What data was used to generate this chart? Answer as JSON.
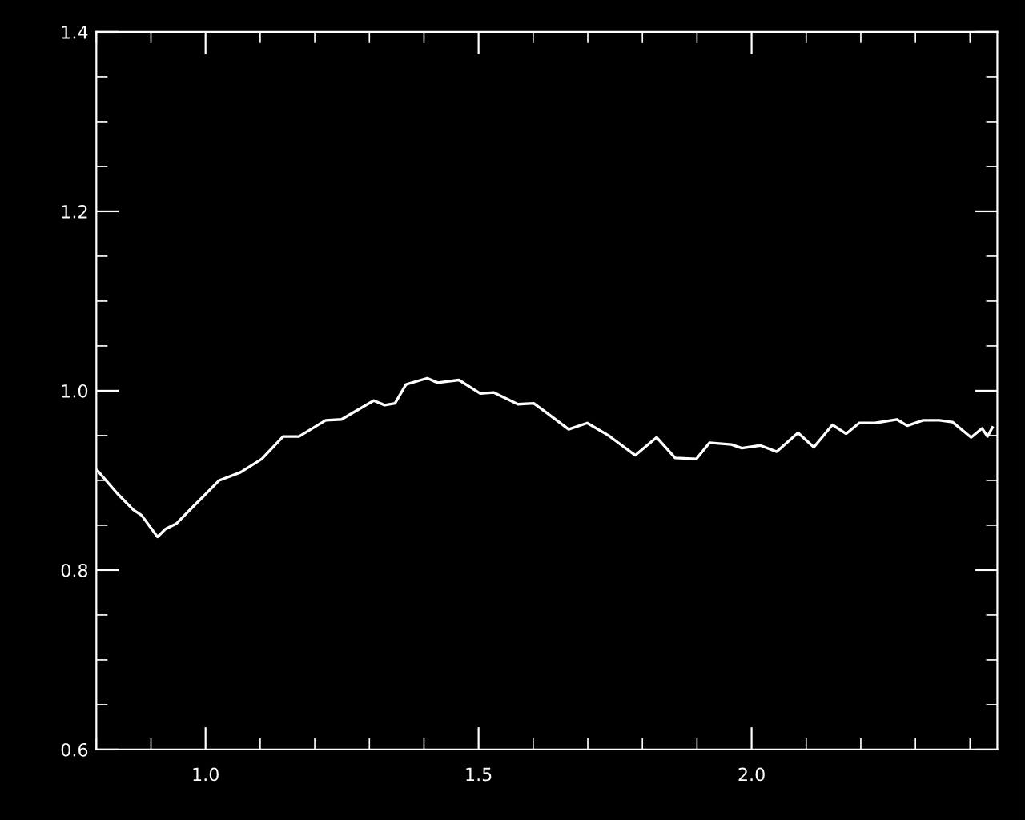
{
  "chart_data": {
    "type": "line",
    "x": [
      0.802,
      0.839,
      0.868,
      0.883,
      0.912,
      0.927,
      0.947,
      0.976,
      1.025,
      1.064,
      1.103,
      1.142,
      1.171,
      1.22,
      1.249,
      1.274,
      1.308,
      1.328,
      1.347,
      1.367,
      1.406,
      1.425,
      1.464,
      1.503,
      1.528,
      1.572,
      1.601,
      1.621,
      1.665,
      1.699,
      1.738,
      1.787,
      1.826,
      1.86,
      1.899,
      1.923,
      1.963,
      1.982,
      2.016,
      2.046,
      2.085,
      2.114,
      2.148,
      2.173,
      2.197,
      2.226,
      2.266,
      2.285,
      2.314,
      2.344,
      2.368,
      2.402,
      2.422,
      2.432,
      2.441
    ],
    "series": [
      {
        "color": "#ffffff",
        "values": [
          0.911,
          0.885,
          0.867,
          0.861,
          0.837,
          0.846,
          0.852,
          0.87,
          0.9,
          0.909,
          0.924,
          0.949,
          0.949,
          0.967,
          0.968,
          0.977,
          0.989,
          0.984,
          0.986,
          1.007,
          1.014,
          1.009,
          1.012,
          0.997,
          0.998,
          0.985,
          0.986,
          0.977,
          0.957,
          0.964,
          0.95,
          0.928,
          0.948,
          0.925,
          0.924,
          0.942,
          0.94,
          0.936,
          0.939,
          0.932,
          0.953,
          0.937,
          0.962,
          0.952,
          0.964,
          0.964,
          0.968,
          0.961,
          0.967,
          0.967,
          0.965,
          0.948,
          0.958,
          0.949,
          0.959
        ]
      }
    ],
    "xlim": [
      0.8,
      2.45
    ],
    "xticks": [
      {
        "value": 1.0,
        "label": "1.0"
      },
      {
        "value": 1.5,
        "label": "1.5"
      },
      {
        "value": 2.0,
        "label": "2.0"
      }
    ],
    "ylim": [
      0.6,
      1.4
    ],
    "yticks": [
      0.6,
      0.8,
      {
        "value": 1.0,
        "label": "1.0"
      },
      1.2,
      1.4
    ],
    "grid": false,
    "legend": false,
    "marker": "none",
    "line_style": "solid"
  }
}
